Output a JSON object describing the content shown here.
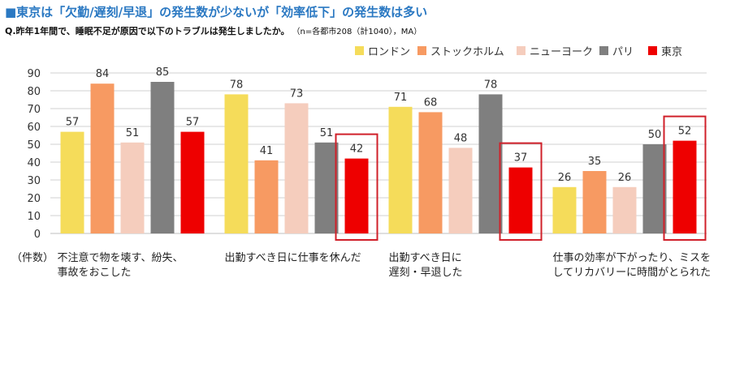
{
  "header": {
    "title": "■東京は「欠勤/遅刻/早退」の発生数が少ないが「効率低下」の発生数は多い",
    "question": "Q.昨年1年間で、睡眠不足が原因で以下のトラブルは発生しましたか。",
    "note": "（n=各都市208（計1040），MA）"
  },
  "chart_data": {
    "type": "bar",
    "title": "",
    "xlabel": "",
    "ylabel": "（件数）",
    "ylim": [
      0,
      90
    ],
    "yticks": [
      0,
      10,
      20,
      30,
      40,
      50,
      60,
      70,
      80,
      90
    ],
    "grid": true,
    "legend_position": "top-right",
    "categories": [
      [
        "不注意で物を壊す、紛失、",
        "事故をおこした"
      ],
      [
        "出勤すべき日に仕事を休んだ"
      ],
      [
        "出勤すべき日に",
        "遅刻・早退した"
      ],
      [
        "仕事の効率が下がったり、ミスを",
        "してリカバリーに時間がとられた"
      ]
    ],
    "series": [
      {
        "name": "ロンドン",
        "color": "#f5dc5a",
        "values": [
          57,
          78,
          71,
          26
        ]
      },
      {
        "name": "ストックホルム",
        "color": "#f79a62",
        "values": [
          84,
          41,
          68,
          35
        ]
      },
      {
        "name": "ニューヨーク",
        "color": "#f5cdbd",
        "values": [
          51,
          73,
          48,
          26
        ]
      },
      {
        "name": "パリ",
        "color": "#7f7f7f",
        "values": [
          85,
          51,
          78,
          50
        ]
      },
      {
        "name": "東京",
        "color": "#ee0000",
        "values": [
          57,
          42,
          37,
          52
        ]
      }
    ],
    "highlight": {
      "series": "東京",
      "color": "#d0202a"
    }
  }
}
